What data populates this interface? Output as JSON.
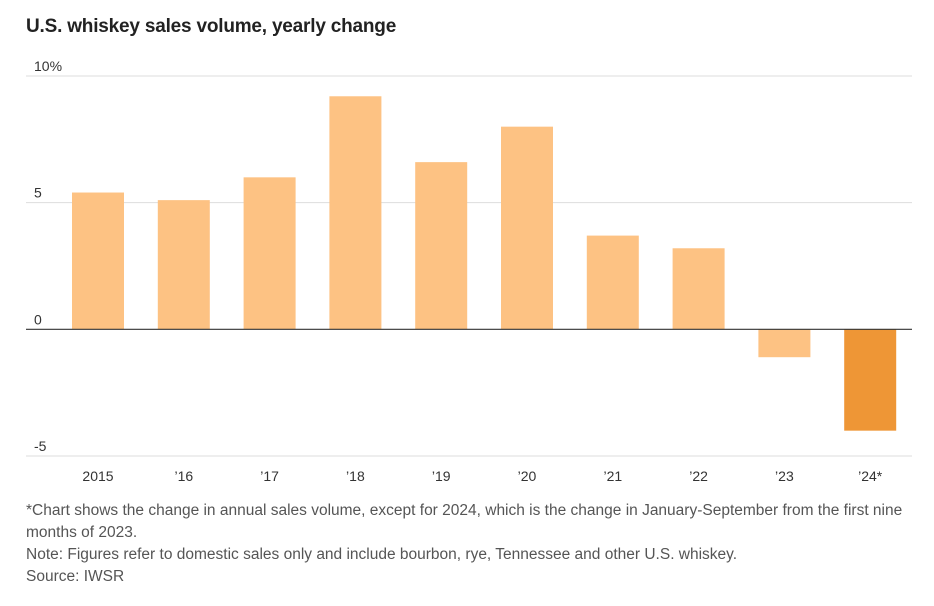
{
  "title": "U.S. whiskey sales volume, yearly change",
  "footnote": "*Chart shows the change in annual sales volume, except for 2024, which is the change in January-September from the first nine months of 2023.",
  "note": "Note: Figures refer to domestic sales only and include bourbon, rye, Tennessee and other U.S. whiskey.",
  "source": "Source: IWSR",
  "colors": {
    "bar": "#fdc283",
    "highlight": "#ee9636",
    "grid": "#dddddd",
    "zero": "#333333"
  },
  "chart_data": {
    "type": "bar",
    "title": "U.S. whiskey sales volume, yearly change",
    "xlabel": "",
    "ylabel": "",
    "categories": [
      "2015",
      "’16",
      "’17",
      "’18",
      "’19",
      "’20",
      "’21",
      "’22",
      "’23",
      "’24*"
    ],
    "values": [
      5.4,
      5.1,
      6.0,
      9.2,
      6.6,
      8.0,
      3.7,
      3.2,
      -1.1,
      -4.0
    ],
    "highlight_index": 9,
    "ylim": [
      -5,
      10
    ],
    "yticks": [
      10,
      5,
      0,
      -5
    ],
    "ytick_labels": [
      "10%",
      "5",
      "0",
      "-5"
    ],
    "grid": true,
    "legend": "none"
  }
}
